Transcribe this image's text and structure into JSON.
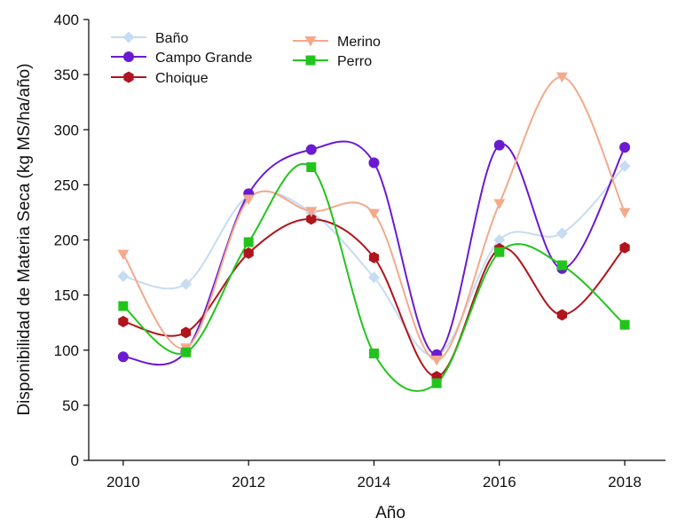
{
  "chart_data": {
    "type": "line",
    "xlabel": "Año",
    "ylabel": "Disponibilidad de Materia Seca (kg MS/ha/año)",
    "x": [
      2010,
      2011,
      2012,
      2013,
      2014,
      2015,
      2016,
      2017,
      2018
    ],
    "xticks": [
      2010,
      2012,
      2014,
      2016,
      2018
    ],
    "xlim": [
      2009.45,
      2018.65
    ],
    "ylim": [
      0,
      400
    ],
    "yticks": [
      0,
      50,
      100,
      150,
      200,
      250,
      300,
      350,
      400
    ],
    "grid": false,
    "legend_position": "top-left",
    "smoothed": true,
    "series": [
      {
        "name": "Baño",
        "color": "#c5dcf2",
        "marker": "diamond",
        "values": [
          167,
          160,
          240,
          225,
          166,
          95,
          200,
          206,
          267
        ]
      },
      {
        "name": "Campo Grande",
        "color": "#6a1ad1",
        "marker": "circle",
        "values": [
          94,
          99,
          242,
          282,
          270,
          96,
          286,
          174,
          284
        ]
      },
      {
        "name": "Choique",
        "color": "#b0141c",
        "marker": "hexagon",
        "values": [
          126,
          116,
          188,
          219,
          184,
          76,
          192,
          132,
          193
        ]
      },
      {
        "name": "Merino",
        "color": "#f4a98c",
        "marker": "triangle-down",
        "values": [
          187,
          102,
          237,
          226,
          224,
          91,
          233,
          348,
          225
        ]
      },
      {
        "name": "Perro",
        "color": "#22c41c",
        "marker": "square",
        "values": [
          140,
          98,
          198,
          266,
          97,
          70,
          189,
          177,
          123
        ]
      }
    ]
  }
}
